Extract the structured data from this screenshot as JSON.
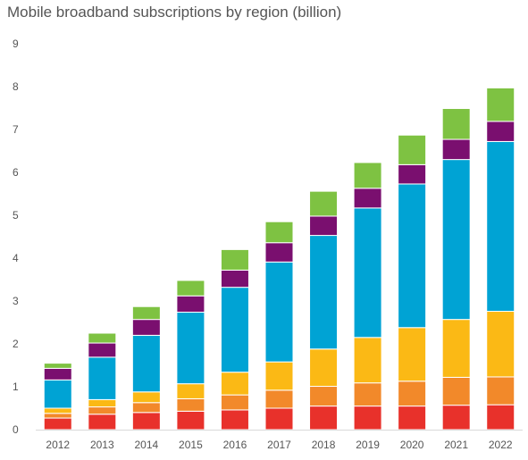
{
  "title": "Mobile broadband subscriptions by region (billion)",
  "chart_data": {
    "type": "bar",
    "stacked": true,
    "title": "Mobile broadband subscriptions by region (billion)",
    "xlabel": "",
    "ylabel": "",
    "ylim": [
      0,
      9
    ],
    "yticks": [
      "0",
      "1",
      "2",
      "3",
      "4",
      "5",
      "6",
      "7",
      "8",
      "9"
    ],
    "grid": false,
    "legend": "none",
    "categories": [
      "2012",
      "2013",
      "2014",
      "2015",
      "2016",
      "2017",
      "2018",
      "2019",
      "2020",
      "2021",
      "2022"
    ],
    "series": [
      {
        "color": "#e8312b",
        "values": [
          0.27,
          0.36,
          0.4,
          0.43,
          0.46,
          0.5,
          0.55,
          0.55,
          0.55,
          0.57,
          0.58
        ]
      },
      {
        "color": "#f2892a",
        "values": [
          0.11,
          0.17,
          0.23,
          0.29,
          0.35,
          0.42,
          0.46,
          0.54,
          0.58,
          0.65,
          0.65
        ]
      },
      {
        "color": "#fbb915",
        "values": [
          0.12,
          0.17,
          0.25,
          0.35,
          0.53,
          0.66,
          0.87,
          1.06,
          1.25,
          1.35,
          1.53
        ]
      },
      {
        "color": "#00a3d4",
        "values": [
          0.66,
          0.99,
          1.32,
          1.67,
          1.98,
          2.33,
          2.65,
          3.02,
          3.35,
          3.73,
          3.96
        ]
      },
      {
        "color": "#7a0f6f",
        "values": [
          0.27,
          0.33,
          0.37,
          0.38,
          0.4,
          0.45,
          0.45,
          0.46,
          0.45,
          0.47,
          0.47
        ]
      },
      {
        "color": "#7ec242",
        "values": [
          0.12,
          0.23,
          0.3,
          0.36,
          0.48,
          0.49,
          0.58,
          0.6,
          0.69,
          0.72,
          0.78
        ]
      }
    ]
  }
}
